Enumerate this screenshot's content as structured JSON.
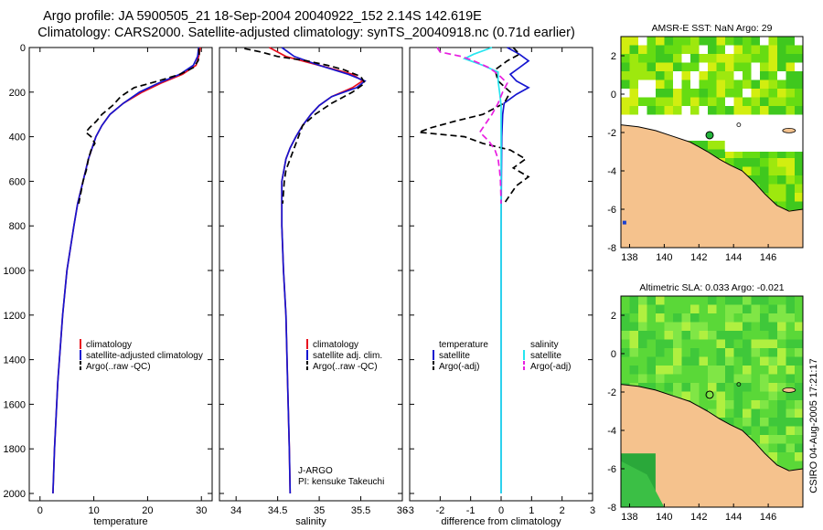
{
  "figure": {
    "title_line1": "Argo profile: JA 5900505_21 18-Sep-2004 20040922_152 2.14S 142.619E",
    "title_line2": "Climatology: CARS2000. Satellite-adjusted climatology: synTS_20040918.nc (0.71d earlier)",
    "credit": "CSIRO 04-Aug-2005 17:21:17",
    "float_label": "J-ARGO",
    "pi_label": "PI: kensuke Takeuchi"
  },
  "colors": {
    "red": "#e8101e",
    "blue": "#1515d0",
    "black": "#000000",
    "cyan": "#26e6f0",
    "magenta": "#e81ee0",
    "land": "#f5c28d"
  },
  "chart_data": [
    {
      "type": "line",
      "title": "",
      "xlabel": "temperature",
      "ylabel": "",
      "xlim": [
        -2,
        32
      ],
      "ylim": [
        2000,
        0
      ],
      "xticks": [
        "0",
        "10",
        "20",
        "30"
      ],
      "yticks": [
        "0",
        "200",
        "400",
        "600",
        "800",
        "1000",
        "1200",
        "1400",
        "1600",
        "1800",
        "2000"
      ],
      "legend": [
        "climatology",
        "satellite-adjusted climatology",
        "Argo(..raw -QC)"
      ],
      "series": [
        {
          "name": "climatology",
          "color": "red",
          "dash": false,
          "depth": [
            0,
            40,
            80,
            120,
            160,
            200,
            250,
            300,
            350,
            400,
            500,
            600,
            700,
            800,
            1000,
            1200,
            1500,
            1800,
            2000
          ],
          "values": [
            29.8,
            29.5,
            29,
            26.5,
            22.5,
            19,
            15.5,
            13,
            11.5,
            10.4,
            9,
            8,
            7,
            6.3,
            5,
            4.2,
            3.3,
            2.7,
            2.4
          ]
        },
        {
          "name": "satellite-adjusted climatology",
          "color": "blue",
          "dash": false,
          "depth": [
            0,
            40,
            80,
            120,
            160,
            200,
            250,
            300,
            350,
            400,
            500,
            600,
            700,
            800,
            1000,
            1200,
            1500,
            1800,
            2000
          ],
          "values": [
            29.5,
            29.3,
            28.5,
            26,
            22,
            18.5,
            15.5,
            13,
            11.5,
            10.4,
            9,
            8,
            7,
            6.3,
            5,
            4.2,
            3.3,
            2.7,
            2.4
          ]
        },
        {
          "name": "Argo(..raw -QC)",
          "color": "black",
          "dash": true,
          "depth": [
            5,
            30,
            60,
            90,
            120,
            150,
            180,
            220,
            260,
            300,
            330,
            360,
            380,
            400,
            430,
            460,
            500,
            550,
            600,
            650,
            700
          ],
          "values": [
            29.5,
            29.6,
            29.4,
            28.5,
            26,
            22,
            17.5,
            15,
            13.5,
            11.5,
            10.5,
            9.2,
            8.5,
            9.5,
            10.2,
            9.5,
            9,
            8.6,
            8,
            7.6,
            7.2
          ]
        }
      ]
    },
    {
      "type": "line",
      "title": "",
      "xlabel": "salinity",
      "ylabel": "",
      "xlim": [
        33.8,
        36
      ],
      "ylim": [
        2000,
        0
      ],
      "xticks": [
        "34",
        "34.5",
        "35",
        "35.5",
        "36"
      ],
      "yticks": [],
      "legend": [
        "climatology",
        "satellite adj. clim.",
        "Argo(..raw -QC)"
      ],
      "series": [
        {
          "name": "climatology",
          "color": "red",
          "dash": false,
          "depth": [
            0,
            40,
            80,
            120,
            150,
            180,
            220,
            260,
            300,
            350,
            400,
            450,
            500,
            600,
            800,
            1000,
            1200,
            1500,
            1800,
            2000
          ],
          "values": [
            34.4,
            34.6,
            35.0,
            35.4,
            35.52,
            35.4,
            35.15,
            35.0,
            34.9,
            34.8,
            34.72,
            34.65,
            34.6,
            34.55,
            34.55,
            34.57,
            34.6,
            34.62,
            34.64,
            34.65
          ]
        },
        {
          "name": "satellite adj. clim.",
          "color": "blue",
          "dash": false,
          "depth": [
            0,
            40,
            80,
            120,
            150,
            180,
            220,
            260,
            300,
            350,
            400,
            450,
            500,
            600,
            800,
            1000,
            1200,
            1500,
            1800,
            2000
          ],
          "values": [
            34.55,
            34.7,
            35.0,
            35.35,
            35.55,
            35.45,
            35.15,
            35.0,
            34.9,
            34.8,
            34.72,
            34.65,
            34.6,
            34.55,
            34.55,
            34.57,
            34.6,
            34.62,
            34.64,
            34.65
          ]
        },
        {
          "name": "Argo(..raw -QC)",
          "color": "black",
          "dash": true,
          "depth": [
            5,
            20,
            40,
            60,
            80,
            100,
            130,
            160,
            200,
            250,
            300,
            350,
            400,
            450,
            500,
            550,
            600,
            650,
            700
          ],
          "values": [
            34.1,
            34.3,
            34.5,
            34.85,
            35.1,
            35.3,
            35.5,
            35.55,
            35.4,
            35.15,
            34.95,
            34.8,
            34.75,
            34.7,
            34.65,
            34.6,
            34.58,
            34.57,
            34.56
          ]
        }
      ]
    },
    {
      "type": "line",
      "title": "",
      "xlabel": "difference from climatology",
      "ylabel": "",
      "xlim": [
        -3,
        3
      ],
      "ylim": [
        2000,
        0
      ],
      "xticks": [
        "-3",
        "-2",
        "-1",
        "0",
        "1",
        "2",
        "3"
      ],
      "yticks": [],
      "legend_left": [
        "temperature",
        "satellite",
        "Argo(-adj)"
      ],
      "legend_right": [
        "salinity",
        "satellite",
        "Argo(-adj)"
      ],
      "series": [
        {
          "name": "temperature satellite",
          "color": "blue",
          "dash": false,
          "depth": [
            0,
            30,
            60,
            90,
            120,
            150,
            180,
            210,
            250,
            300,
            400,
            600,
            800,
            1000,
            1200,
            1500,
            2000
          ],
          "values": [
            0.2,
            0.6,
            0.9,
            0.6,
            0.3,
            0.5,
            0.9,
            0.5,
            0.1,
            0.05,
            0.02,
            0.01,
            0,
            0,
            0,
            0,
            0
          ]
        },
        {
          "name": "temperature Argo(-adj)",
          "color": "black",
          "dash": true,
          "depth": [
            0,
            30,
            60,
            100,
            150,
            200,
            250,
            300,
            330,
            360,
            380,
            400,
            430,
            460,
            500,
            540,
            580,
            620,
            660,
            700
          ],
          "values": [
            0.4,
            0.6,
            0.2,
            -0.2,
            -0.1,
            0.3,
            0.1,
            -0.6,
            -1.5,
            -2.3,
            -2.7,
            -1.2,
            -0.6,
            0.3,
            0.8,
            0.4,
            0.9,
            0.5,
            0.3,
            0.1
          ]
        },
        {
          "name": "salinity satellite",
          "color": "cyan",
          "dash": false,
          "depth": [
            0,
            30,
            50,
            80,
            110,
            150,
            200,
            260,
            300,
            400,
            600,
            800,
            1000,
            1300,
            1600,
            2000
          ],
          "values": [
            -0.3,
            -0.9,
            -1.2,
            -0.6,
            -0.1,
            -0.1,
            -0.05,
            0,
            0,
            0,
            0,
            0,
            0,
            0,
            0,
            0
          ]
        },
        {
          "name": "salinity Argo(-adj)",
          "color": "magenta",
          "dash": true,
          "depth": [
            0,
            20,
            40,
            60,
            90,
            120,
            160,
            200,
            250,
            300,
            340,
            380,
            420,
            460,
            500,
            550,
            600,
            700
          ],
          "values": [
            -2.1,
            -2.0,
            -1.3,
            -0.9,
            -0.4,
            -0.1,
            0.2,
            0.05,
            -0.1,
            -0.3,
            -0.5,
            -0.7,
            -0.4,
            -0.2,
            -0.1,
            -0.05,
            -0.02,
            0
          ]
        }
      ]
    },
    {
      "type": "heatmap",
      "title": "AMSR-E SST: NaN Argo: 29",
      "xlim": [
        137.5,
        148
      ],
      "ylim": [
        -8,
        3
      ],
      "xticks": [
        "138",
        "140",
        "142",
        "144",
        "146"
      ],
      "yticks": [
        "2",
        "0",
        "-2",
        "-4",
        "-6",
        "-8"
      ],
      "argo_position": [
        142.619,
        -2.14
      ]
    },
    {
      "type": "heatmap",
      "title": "Altimetric SLA: 0.033 Argo: -0.021",
      "xlim": [
        137.5,
        148
      ],
      "ylim": [
        -8,
        3
      ],
      "xticks": [
        "138",
        "140",
        "142",
        "144",
        "146"
      ],
      "yticks": [
        "2",
        "0",
        "-2",
        "-4",
        "-6",
        "-8"
      ],
      "argo_position": [
        142.619,
        -2.14
      ]
    }
  ]
}
